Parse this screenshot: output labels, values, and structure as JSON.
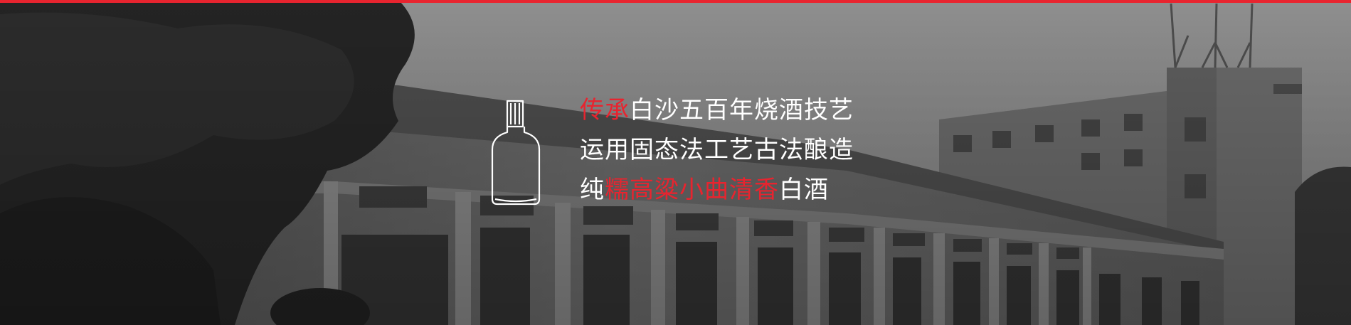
{
  "colors": {
    "accent": "#e8242f",
    "text": "#ffffff",
    "top_line": "#e8242f"
  },
  "hero": {
    "background_image": "grayscale-photo-of-old-distillery-building",
    "icon": "liquor-bottle-icon",
    "lines": [
      {
        "highlight": "传承",
        "rest": "白沙五百年烧酒技艺"
      },
      {
        "text": "运用固态法工艺古法酿造"
      },
      {
        "prefix": "纯",
        "highlight": "糯高粱小曲清香",
        "suffix": "白酒"
      }
    ]
  }
}
